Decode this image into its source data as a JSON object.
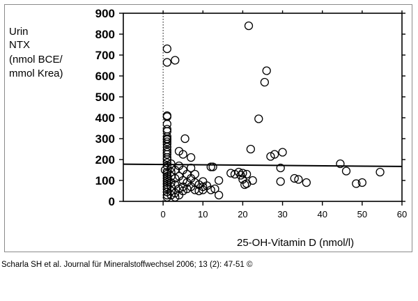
{
  "chart_data": {
    "type": "scatter",
    "title": "",
    "ylabel": [
      "Urin",
      "NTX",
      "(nmol BCE/",
      "mmol Krea)"
    ],
    "xlabel": "25-OH-Vitamin D (nmol/l)",
    "xlim": [
      -10,
      60
    ],
    "ylim": [
      0,
      900
    ],
    "x_ticks": [
      0,
      10,
      20,
      30,
      40,
      50,
      60
    ],
    "y_ticks": [
      0,
      100,
      200,
      300,
      400,
      500,
      600,
      700,
      800,
      900
    ],
    "reference_lines": {
      "vertical_dotted_x": 0,
      "horizontal_solid": {
        "x_start": -10,
        "y_start": 178,
        "x_end": 60,
        "y_end": 167
      }
    },
    "grid": false,
    "marker": "open-circle",
    "points": [
      [
        1,
        730
      ],
      [
        1,
        665
      ],
      [
        3,
        675
      ],
      [
        1,
        410
      ],
      [
        1,
        405
      ],
      [
        1,
        370
      ],
      [
        1,
        345
      ],
      [
        1,
        335
      ],
      [
        1,
        310
      ],
      [
        1,
        300
      ],
      [
        1,
        295
      ],
      [
        1,
        285
      ],
      [
        1,
        275
      ],
      [
        1,
        260
      ],
      [
        1,
        245
      ],
      [
        1,
        235
      ],
      [
        1,
        225
      ],
      [
        1,
        210
      ],
      [
        1,
        200
      ],
      [
        1,
        185
      ],
      [
        1,
        170
      ],
      [
        0.5,
        150
      ],
      [
        1,
        140
      ],
      [
        1,
        130
      ],
      [
        1,
        120
      ],
      [
        1,
        110
      ],
      [
        1,
        100
      ],
      [
        1,
        90
      ],
      [
        1,
        80
      ],
      [
        1,
        70
      ],
      [
        1,
        60
      ],
      [
        1,
        45
      ],
      [
        1,
        30
      ],
      [
        1,
        20
      ],
      [
        2,
        180
      ],
      [
        2,
        160
      ],
      [
        2,
        140
      ],
      [
        2,
        120
      ],
      [
        2,
        90
      ],
      [
        2,
        70
      ],
      [
        2,
        50
      ],
      [
        2,
        30
      ],
      [
        3,
        150
      ],
      [
        3,
        110
      ],
      [
        3,
        80
      ],
      [
        3,
        40
      ],
      [
        3,
        20
      ],
      [
        4,
        240
      ],
      [
        4,
        170
      ],
      [
        4,
        120
      ],
      [
        4,
        60
      ],
      [
        4,
        30
      ],
      [
        5,
        225
      ],
      [
        5,
        150
      ],
      [
        5,
        100
      ],
      [
        5,
        70
      ],
      [
        5,
        50
      ],
      [
        5.5,
        300
      ],
      [
        6,
        130
      ],
      [
        6,
        90
      ],
      [
        6,
        60
      ],
      [
        7,
        210
      ],
      [
        7,
        160
      ],
      [
        7,
        110
      ],
      [
        7,
        70
      ],
      [
        8,
        130
      ],
      [
        8,
        90
      ],
      [
        8,
        55
      ],
      [
        9,
        80
      ],
      [
        9,
        50
      ],
      [
        10,
        95
      ],
      [
        10,
        70
      ],
      [
        10,
        55
      ],
      [
        11,
        75
      ],
      [
        12,
        165
      ],
      [
        12.5,
        165
      ],
      [
        12,
        55
      ],
      [
        13,
        60
      ],
      [
        14,
        100
      ],
      [
        14,
        30
      ],
      [
        17,
        135
      ],
      [
        18,
        130
      ],
      [
        19,
        140
      ],
      [
        19.5,
        125
      ],
      [
        20,
        135
      ],
      [
        20,
        105
      ],
      [
        20.5,
        80
      ],
      [
        21,
        85
      ],
      [
        21,
        130
      ],
      [
        21.5,
        840
      ],
      [
        22,
        250
      ],
      [
        22.5,
        100
      ],
      [
        24,
        395
      ],
      [
        25.5,
        570
      ],
      [
        26,
        625
      ],
      [
        27,
        215
      ],
      [
        28,
        225
      ],
      [
        29.5,
        95
      ],
      [
        29.5,
        160
      ],
      [
        30,
        235
      ],
      [
        33,
        110
      ],
      [
        34,
        105
      ],
      [
        36,
        90
      ],
      [
        44.5,
        180
      ],
      [
        46,
        145
      ],
      [
        48.5,
        85
      ],
      [
        50,
        90
      ],
      [
        54.5,
        140
      ]
    ]
  },
  "caption": "Scharla SH et al. Journal für Mineralstoffwechsel 2006; 13 (2): 47-51 ©"
}
